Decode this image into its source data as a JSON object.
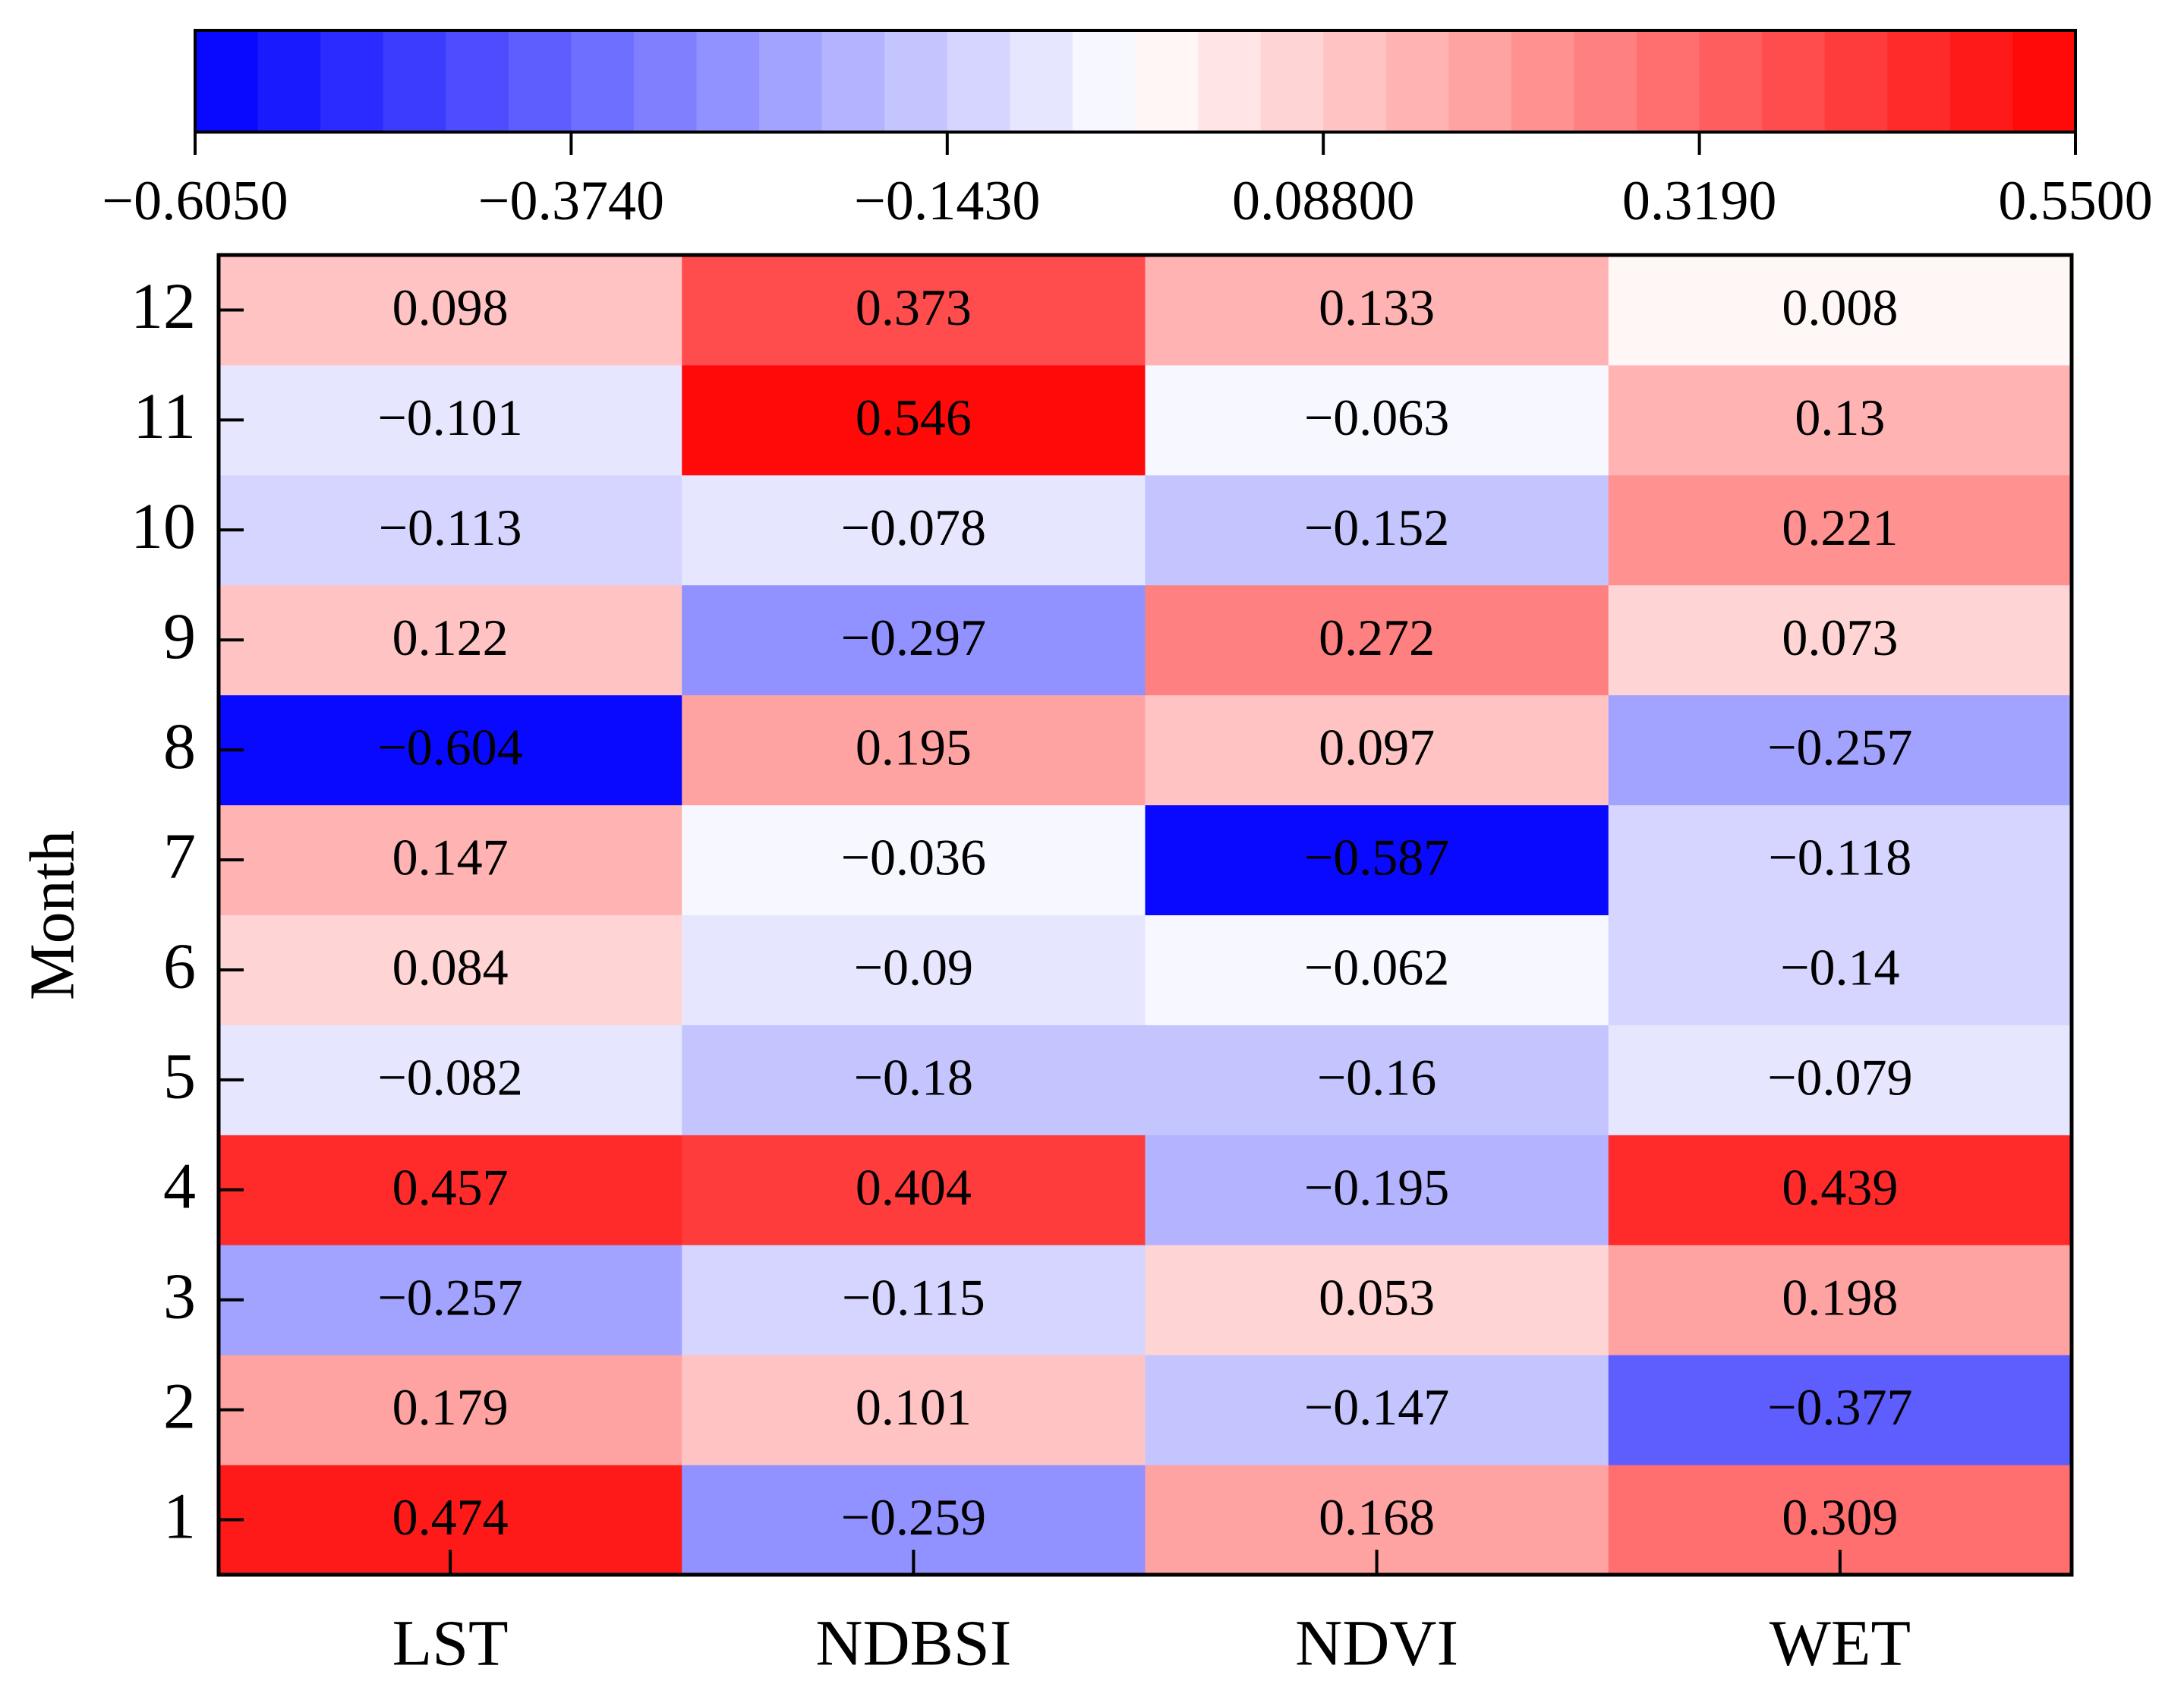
{
  "chart_data": {
    "type": "heatmap",
    "x_categories": [
      "LST",
      "NDBSI",
      "NDVI",
      "WET"
    ],
    "y_categories": [
      "1",
      "2",
      "3",
      "4",
      "5",
      "6",
      "7",
      "8",
      "9",
      "10",
      "11",
      "12"
    ],
    "ylabel": "Month",
    "values": [
      [
        0.474,
        -0.259,
        0.168,
        0.309
      ],
      [
        0.179,
        0.101,
        -0.147,
        -0.377
      ],
      [
        -0.257,
        -0.115,
        0.053,
        0.198
      ],
      [
        0.457,
        0.404,
        -0.195,
        0.439
      ],
      [
        -0.082,
        -0.18,
        -0.16,
        -0.079
      ],
      [
        0.084,
        -0.09,
        -0.062,
        -0.14
      ],
      [
        0.147,
        -0.036,
        -0.587,
        -0.118
      ],
      [
        -0.604,
        0.195,
        0.097,
        -0.257
      ],
      [
        0.122,
        -0.297,
        0.272,
        0.073
      ],
      [
        -0.113,
        -0.078,
        -0.152,
        0.221
      ],
      [
        -0.101,
        0.546,
        -0.063,
        0.13
      ],
      [
        0.098,
        0.373,
        0.133,
        0.008
      ]
    ],
    "value_labels": [
      [
        "0.474",
        "−0.259",
        "0.168",
        "0.309"
      ],
      [
        "0.179",
        "0.101",
        "−0.147",
        "−0.377"
      ],
      [
        "−0.257",
        "−0.115",
        "0.053",
        "0.198"
      ],
      [
        "0.457",
        "0.404",
        "−0.195",
        "0.439"
      ],
      [
        "−0.082",
        "−0.18",
        "−0.16",
        "−0.079"
      ],
      [
        "0.084",
        "−0.09",
        "−0.062",
        "−0.14"
      ],
      [
        "0.147",
        "−0.036",
        "−0.587",
        "−0.118"
      ],
      [
        "−0.604",
        "0.195",
        "0.097",
        "−0.257"
      ],
      [
        "0.122",
        "−0.297",
        "0.272",
        "0.073"
      ],
      [
        "−0.113",
        "−0.078",
        "−0.152",
        "0.221"
      ],
      [
        "−0.101",
        "0.546",
        "−0.063",
        "0.13"
      ],
      [
        "0.098",
        "0.373",
        "0.133",
        "0.008"
      ]
    ],
    "colormap": "bwr",
    "levels": 30,
    "clim": [
      -0.605,
      0.55
    ],
    "cticks": [
      {
        "value": -0.605,
        "label": "−0.6050"
      },
      {
        "value": -0.374,
        "label": "−0.3740"
      },
      {
        "value": -0.143,
        "label": "−0.1430"
      },
      {
        "value": 0.088,
        "label": "0.08800"
      },
      {
        "value": 0.319,
        "label": "0.3190"
      },
      {
        "value": 0.55,
        "label": "0.5500"
      }
    ]
  }
}
